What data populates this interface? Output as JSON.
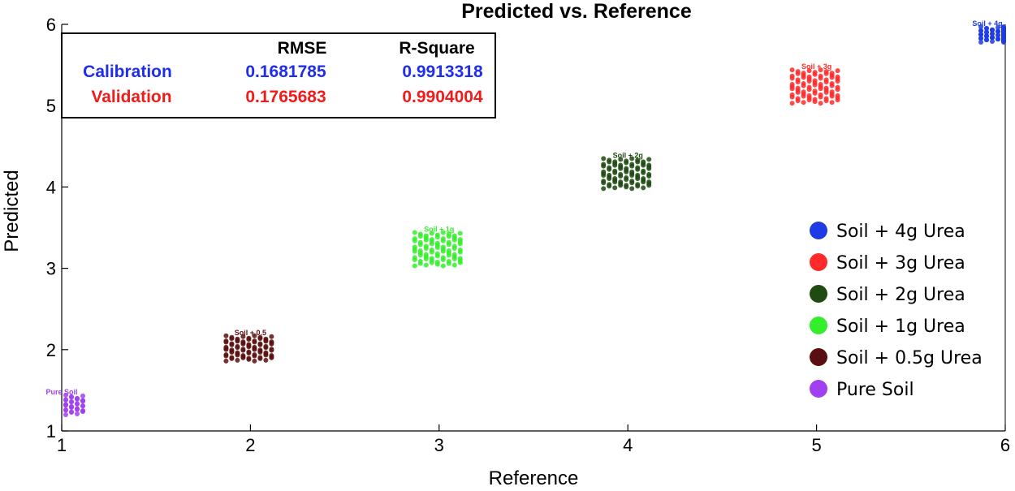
{
  "chart_data": {
    "type": "scatter",
    "title": "Predicted vs. Reference",
    "xlabel": "Reference",
    "ylabel": "Predicted",
    "xlim": [
      1,
      6
    ],
    "ylim": [
      1,
      6
    ],
    "x_ticks": [
      "1",
      "2",
      "3",
      "4",
      "5",
      "6"
    ],
    "y_ticks": [
      "1",
      "2",
      "3",
      "4",
      "5",
      "6"
    ],
    "grid": false,
    "legend_position": "right",
    "stats_table": {
      "headers": [
        "RMSE",
        "R-Square"
      ],
      "rows": [
        {
          "name": "Calibration",
          "rmse": "0.1681785",
          "r_square": "0.9913318",
          "color": "#1f2eea"
        },
        {
          "name": "Validation",
          "rmse": "0.1765683",
          "r_square": "0.9904004",
          "color": "#f01c1c"
        }
      ]
    },
    "series": [
      {
        "name": "Soil + 4g Urea",
        "color": "#1f3be6",
        "reference": 6,
        "predicted_min": 5.8,
        "predicted_max": 5.95,
        "point_label": "Soil + 4g"
      },
      {
        "name": "Soil + 3g Urea",
        "color": "#ff2a2a",
        "reference": 5,
        "predicted_min": 5.05,
        "predicted_max": 5.42,
        "point_label": "Soil + 3g"
      },
      {
        "name": "Soil + 2g Urea",
        "color": "#1f4a12",
        "reference": 4,
        "predicted_min": 4.0,
        "predicted_max": 4.33,
        "point_label": "Soil + 2g"
      },
      {
        "name": "Soil + 1g Urea",
        "color": "#34ee2c",
        "reference": 3,
        "predicted_min": 3.05,
        "predicted_max": 3.42,
        "point_label": "Soil + 1g"
      },
      {
        "name": "Soil + 0.5g Urea",
        "color": "#5a1010",
        "reference": 2,
        "predicted_min": 1.88,
        "predicted_max": 2.15,
        "point_label": "Soil + 0.5"
      },
      {
        "name": "Pure Soil",
        "color": "#a040f0",
        "reference": 1,
        "predicted_min": 1.22,
        "predicted_max": 1.42,
        "point_label": "Pure Soil"
      }
    ]
  }
}
